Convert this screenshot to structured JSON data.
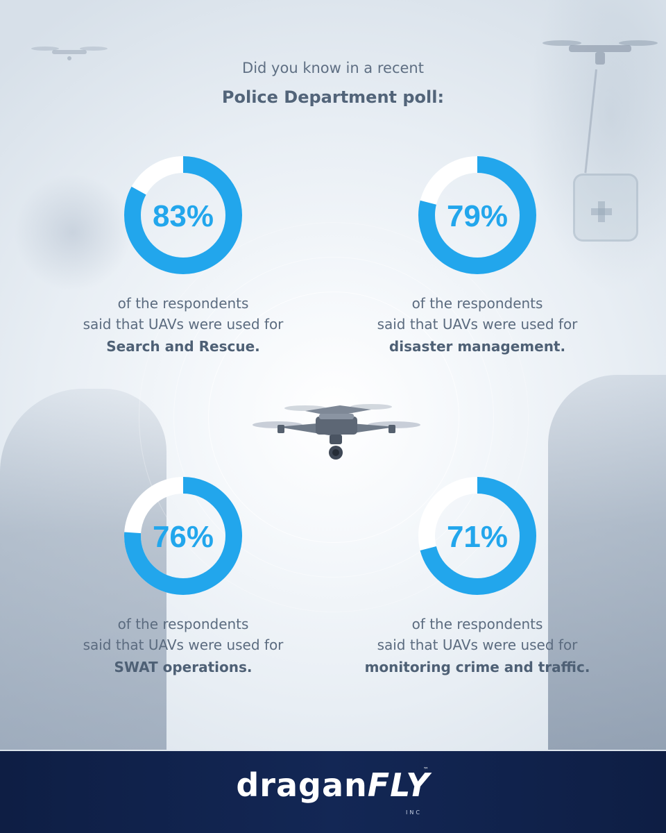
{
  "intro": "Did you know in a recent",
  "headline": "Police Department poll:",
  "chart_data": {
    "type": "pie",
    "variant": "donut",
    "series": [
      {
        "value": 83,
        "label": "83%",
        "line1": "of the respondents",
        "line2": "said that UAVs were used for",
        "category": "Search and Rescue."
      },
      {
        "value": 79,
        "label": "79%",
        "line1": "of the respondents",
        "line2": "said that UAVs were used for",
        "category": "disaster management."
      },
      {
        "value": 76,
        "label": "76%",
        "line1": "of the respondents",
        "line2": "said that UAVs were used for",
        "category": "SWAT operations."
      },
      {
        "value": 71,
        "label": "71%",
        "line1": "of the respondents",
        "line2": "said that UAVs were used for",
        "category": "monitoring crime and traffic."
      }
    ],
    "max": 100,
    "colors": {
      "ring": "#22a6ec",
      "track": "#ffffff"
    }
  },
  "logo": {
    "main": "dragan",
    "accent": "FLY",
    "tm": "™",
    "inc": "INC"
  }
}
